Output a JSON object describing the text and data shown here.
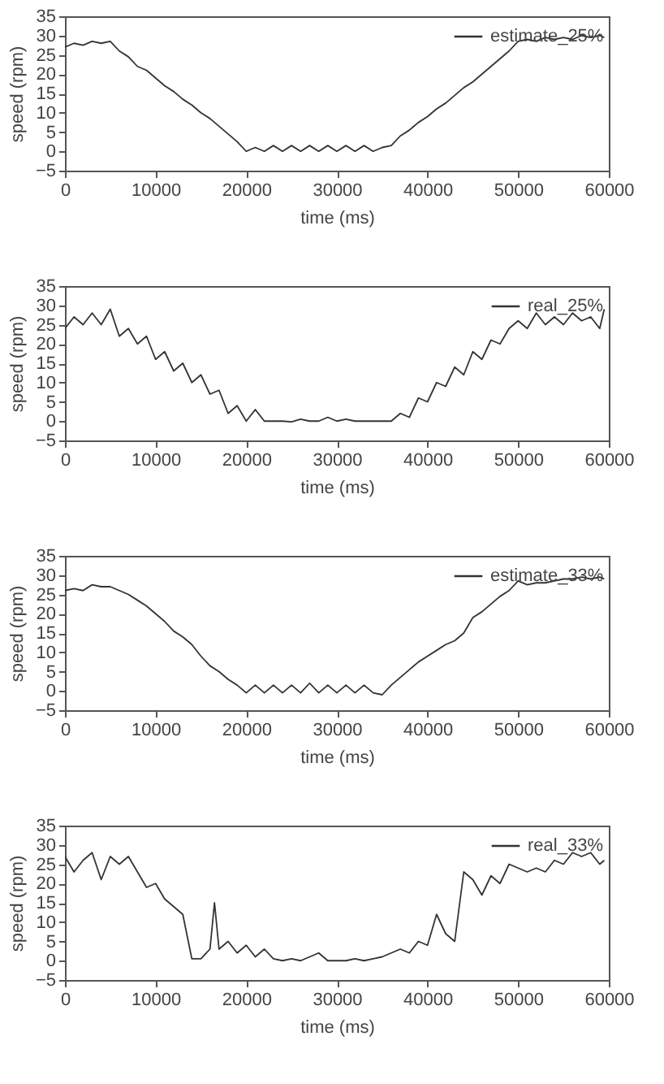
{
  "chart_data": [
    {
      "type": "line",
      "xlabel": "time (ms)",
      "ylabel": "speed (rpm)",
      "xlim": [
        0,
        60000
      ],
      "ylim": [
        -5,
        35
      ],
      "xticks": [
        0,
        10000,
        20000,
        30000,
        40000,
        50000,
        60000
      ],
      "yticks": [
        -5,
        0,
        5,
        10,
        15,
        20,
        25,
        30,
        35
      ],
      "grid": false,
      "legend": "top right",
      "x": [
        0,
        1000,
        2000,
        3000,
        4000,
        5000,
        6000,
        7000,
        8000,
        9000,
        10000,
        11000,
        12000,
        13000,
        14000,
        15000,
        16000,
        17000,
        18000,
        19000,
        20000,
        21000,
        22000,
        23000,
        24000,
        25000,
        26000,
        27000,
        28000,
        29000,
        30000,
        31000,
        32000,
        33000,
        34000,
        35000,
        36000,
        37000,
        38000,
        39000,
        40000,
        41000,
        42000,
        43000,
        44000,
        45000,
        46000,
        47000,
        48000,
        49000,
        50000,
        51000,
        52000,
        53000,
        54000,
        55000,
        56000,
        57000,
        58000,
        59000,
        59500
      ],
      "series": [
        {
          "name": "estimate_25%",
          "color": "#333333",
          "values": [
            27,
            28,
            27.5,
            28.5,
            28,
            28.5,
            26,
            24.5,
            22,
            21,
            19,
            17,
            15.5,
            13.5,
            12,
            10,
            8.5,
            6.5,
            4.5,
            2.5,
            0,
            1,
            0,
            1.5,
            0,
            1.5,
            0,
            1.5,
            0,
            1.5,
            0,
            1.5,
            0,
            1.5,
            0,
            1,
            1.5,
            4,
            5.5,
            7.5,
            9,
            11,
            12.5,
            14.5,
            16.5,
            18,
            20,
            22,
            24,
            26,
            28.5,
            29,
            28.5,
            29.5,
            29,
            29.5,
            29,
            30,
            29.5,
            30,
            29.5
          ]
        }
      ]
    },
    {
      "type": "line",
      "xlabel": "time (ms)",
      "ylabel": "speed (rpm)",
      "xlim": [
        0,
        60000
      ],
      "ylim": [
        -5,
        35
      ],
      "xticks": [
        0,
        10000,
        20000,
        30000,
        40000,
        50000,
        60000
      ],
      "yticks": [
        -5,
        0,
        5,
        10,
        15,
        20,
        25,
        30,
        35
      ],
      "grid": false,
      "legend": "top right",
      "x": [
        0,
        1000,
        2000,
        3000,
        4000,
        5000,
        6000,
        7000,
        8000,
        9000,
        10000,
        11000,
        12000,
        13000,
        14000,
        15000,
        16000,
        17000,
        18000,
        19000,
        20000,
        21000,
        22000,
        23000,
        24000,
        25000,
        26000,
        27000,
        28000,
        29000,
        30000,
        31000,
        32000,
        33000,
        34000,
        35000,
        36000,
        37000,
        38000,
        39000,
        40000,
        41000,
        42000,
        43000,
        44000,
        45000,
        46000,
        47000,
        48000,
        49000,
        50000,
        51000,
        52000,
        53000,
        54000,
        55000,
        56000,
        57000,
        58000,
        59000,
        59500
      ],
      "series": [
        {
          "name": "real_25%",
          "color": "#333333",
          "values": [
            24,
            27,
            25,
            28,
            25,
            29,
            22,
            24,
            20,
            22,
            16,
            18,
            13,
            15,
            10,
            12,
            7,
            8,
            2,
            4,
            0,
            3,
            0,
            0,
            0,
            -0.2,
            0.5,
            0,
            0,
            1,
            0,
            0.5,
            0,
            0,
            0,
            0,
            0,
            2,
            1,
            6,
            5,
            10,
            9,
            14,
            12,
            18,
            16,
            21,
            20,
            24,
            26,
            24,
            28,
            25,
            27,
            25,
            28,
            26,
            27,
            24,
            29
          ]
        }
      ]
    },
    {
      "type": "line",
      "xlabel": "time (ms)",
      "ylabel": "speed (rpm)",
      "xlim": [
        0,
        60000
      ],
      "ylim": [
        -5,
        35
      ],
      "xticks": [
        0,
        10000,
        20000,
        30000,
        40000,
        50000,
        60000
      ],
      "yticks": [
        -5,
        0,
        5,
        10,
        15,
        20,
        25,
        30,
        35
      ],
      "grid": false,
      "legend": "top right",
      "x": [
        0,
        1000,
        2000,
        3000,
        4000,
        5000,
        6000,
        7000,
        8000,
        9000,
        10000,
        11000,
        12000,
        13000,
        14000,
        15000,
        16000,
        17000,
        18000,
        19000,
        20000,
        21000,
        22000,
        23000,
        24000,
        25000,
        26000,
        27000,
        28000,
        29000,
        30000,
        31000,
        32000,
        33000,
        34000,
        35000,
        36000,
        37000,
        38000,
        39000,
        40000,
        41000,
        42000,
        43000,
        44000,
        45000,
        46000,
        47000,
        48000,
        49000,
        50000,
        51000,
        52000,
        53000,
        54000,
        55000,
        56000,
        57000,
        58000,
        59000,
        59500
      ],
      "series": [
        {
          "name": "estimate_33%",
          "color": "#333333",
          "values": [
            26,
            26.5,
            26,
            27.5,
            27,
            27,
            26,
            25,
            23.5,
            22,
            20,
            18,
            15.5,
            14,
            12,
            9,
            6.5,
            5,
            3,
            1.5,
            -0.5,
            1.5,
            -0.5,
            1.5,
            -0.5,
            1.5,
            -0.5,
            2,
            -0.5,
            1.5,
            -0.5,
            1.5,
            -0.5,
            1.5,
            -0.5,
            -1,
            1.5,
            3.5,
            5.5,
            7.5,
            9,
            10.5,
            12,
            13,
            15,
            19,
            20.5,
            22.5,
            24.5,
            26,
            28.5,
            27.5,
            28,
            28,
            28.5,
            29,
            29,
            29.5,
            29,
            29.5,
            29
          ]
        }
      ]
    },
    {
      "type": "line",
      "xlabel": "time (ms)",
      "ylabel": "speed (rpm)",
      "xlim": [
        0,
        60000
      ],
      "ylim": [
        -5,
        35
      ],
      "xticks": [
        0,
        10000,
        20000,
        30000,
        40000,
        50000,
        60000
      ],
      "yticks": [
        -5,
        0,
        5,
        10,
        15,
        20,
        25,
        30,
        35
      ],
      "grid": false,
      "legend": "top right",
      "x": [
        0,
        1000,
        2000,
        3000,
        4000,
        5000,
        6000,
        7000,
        8000,
        9000,
        10000,
        11000,
        12000,
        13000,
        14000,
        15000,
        16000,
        16500,
        17000,
        18000,
        19000,
        20000,
        21000,
        22000,
        23000,
        24000,
        25000,
        26000,
        27000,
        28000,
        29000,
        30000,
        31000,
        32000,
        33000,
        34000,
        35000,
        36000,
        37000,
        38000,
        39000,
        40000,
        41000,
        42000,
        43000,
        44000,
        45000,
        46000,
        47000,
        48000,
        49000,
        50000,
        51000,
        52000,
        53000,
        54000,
        55000,
        56000,
        57000,
        58000,
        59000,
        59500
      ],
      "series": [
        {
          "name": "real_33%",
          "color": "#333333",
          "values": [
            27,
            23,
            26,
            28,
            21,
            27,
            25,
            27,
            23,
            19,
            20,
            16,
            14,
            12,
            0.5,
            0.5,
            3,
            15,
            3,
            5,
            2,
            4,
            1,
            3,
            0.5,
            0,
            0.5,
            0,
            1,
            2,
            0,
            0,
            0,
            0.5,
            0,
            0.5,
            1,
            2,
            3,
            2,
            5,
            4,
            12,
            7,
            5,
            23,
            21,
            17,
            22,
            20,
            25,
            24,
            23,
            24,
            23,
            26,
            25,
            28,
            27,
            28,
            25,
            26
          ]
        }
      ]
    }
  ]
}
